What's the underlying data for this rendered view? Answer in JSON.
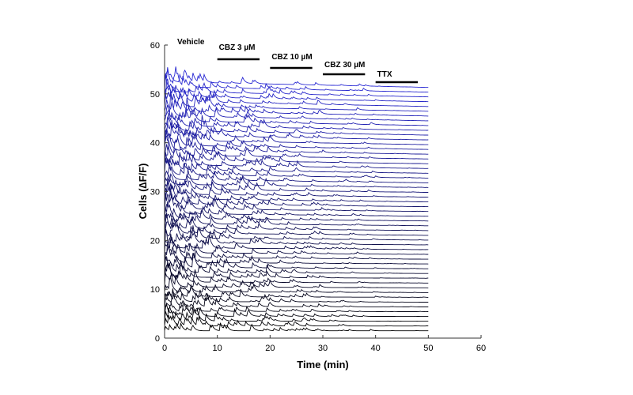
{
  "chart_data": {
    "type": "line",
    "title": "",
    "xlabel": "Time (min)",
    "ylabel": "Cells (∆F/F)",
    "xlim": [
      0,
      60
    ],
    "ylim": [
      0,
      60
    ],
    "xticks": [
      0,
      10,
      20,
      30,
      40,
      50,
      60
    ],
    "yticks": [
      0,
      10,
      20,
      30,
      40,
      50,
      60
    ],
    "grid": false,
    "trace_count": 52,
    "trace_x_range": [
      0,
      50
    ],
    "trace_color_start": "#000000",
    "trace_color_end": "#2a2ad4",
    "annotations": [
      {
        "label": "Vehicle",
        "x_start": 0,
        "x_end": 10,
        "bar": false
      },
      {
        "label": "CBZ 3 µM",
        "x_start": 10,
        "x_end": 18,
        "bar": true
      },
      {
        "label": "CBZ 10 µM",
        "x_start": 20,
        "x_end": 28,
        "bar": true
      },
      {
        "label": "CBZ 30 µM",
        "x_start": 30,
        "x_end": 38,
        "bar": true
      },
      {
        "label": "TTX",
        "x_start": 40,
        "x_end": 48,
        "bar": true
      }
    ]
  }
}
